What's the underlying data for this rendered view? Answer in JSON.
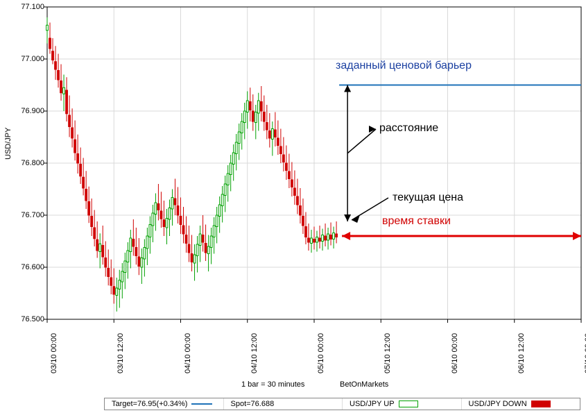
{
  "chart": {
    "type": "candlestick",
    "y_axis_label": "USD/JPY",
    "background_color": "#ffffff",
    "grid_color": "#d9d9d9",
    "axis_color": "#000000",
    "up_color": "#00a000",
    "down_color": "#d00000",
    "barrier_color": "#1e72b8",
    "arrow_color": "#000000",
    "bettime_color": "#e00000",
    "ylim": [
      76.5,
      77.1
    ],
    "yticks": [
      76.5,
      76.6,
      76.7,
      76.8,
      76.9,
      77.0,
      77.1
    ],
    "xticks": [
      "03/10 00:00",
      "03/10 12:00",
      "04/10 00:00",
      "04/10 12:00",
      "05/10 00:00",
      "05/10 12:00",
      "06/10 00:00",
      "06/10 12:00",
      "07/10 00:00"
    ],
    "x_bar_range": [
      0,
      192
    ],
    "x_visible_candles": [
      0,
      105
    ],
    "candles": [
      {
        "o": 77.055,
        "h": 77.08,
        "l": 77.03,
        "c": 77.065,
        "d": "u"
      },
      {
        "o": 77.04,
        "h": 77.07,
        "l": 77.01,
        "c": 77.02,
        "d": "d"
      },
      {
        "o": 77.015,
        "h": 77.04,
        "l": 76.99,
        "c": 76.998,
        "d": "d"
      },
      {
        "o": 76.995,
        "h": 77.025,
        "l": 76.96,
        "c": 76.98,
        "d": "d"
      },
      {
        "o": 76.978,
        "h": 77.01,
        "l": 76.945,
        "c": 76.96,
        "d": "d"
      },
      {
        "o": 76.958,
        "h": 76.99,
        "l": 76.92,
        "c": 76.935,
        "d": "d"
      },
      {
        "o": 76.933,
        "h": 76.97,
        "l": 76.9,
        "c": 76.945,
        "d": "u"
      },
      {
        "o": 76.94,
        "h": 76.965,
        "l": 76.88,
        "c": 76.895,
        "d": "d"
      },
      {
        "o": 76.892,
        "h": 76.93,
        "l": 76.85,
        "c": 76.87,
        "d": "d"
      },
      {
        "o": 76.868,
        "h": 76.905,
        "l": 76.83,
        "c": 76.848,
        "d": "d"
      },
      {
        "o": 76.845,
        "h": 76.882,
        "l": 76.805,
        "c": 76.82,
        "d": "d"
      },
      {
        "o": 76.818,
        "h": 76.855,
        "l": 76.78,
        "c": 76.8,
        "d": "d"
      },
      {
        "o": 76.798,
        "h": 76.83,
        "l": 76.76,
        "c": 76.775,
        "d": "d"
      },
      {
        "o": 76.773,
        "h": 76.81,
        "l": 76.738,
        "c": 76.752,
        "d": "d"
      },
      {
        "o": 76.75,
        "h": 76.785,
        "l": 76.712,
        "c": 76.728,
        "d": "d"
      },
      {
        "o": 76.726,
        "h": 76.755,
        "l": 76.685,
        "c": 76.7,
        "d": "d"
      },
      {
        "o": 76.698,
        "h": 76.732,
        "l": 76.66,
        "c": 76.678,
        "d": "d"
      },
      {
        "o": 76.676,
        "h": 76.71,
        "l": 76.64,
        "c": 76.655,
        "d": "d"
      },
      {
        "o": 76.653,
        "h": 76.688,
        "l": 76.618,
        "c": 76.632,
        "d": "d"
      },
      {
        "o": 76.63,
        "h": 76.665,
        "l": 76.598,
        "c": 76.645,
        "d": "u"
      },
      {
        "o": 76.642,
        "h": 76.68,
        "l": 76.605,
        "c": 76.62,
        "d": "d"
      },
      {
        "o": 76.618,
        "h": 76.65,
        "l": 76.582,
        "c": 76.6,
        "d": "d"
      },
      {
        "o": 76.598,
        "h": 76.634,
        "l": 76.565,
        "c": 76.582,
        "d": "d"
      },
      {
        "o": 76.58,
        "h": 76.615,
        "l": 76.548,
        "c": 76.565,
        "d": "d"
      },
      {
        "o": 76.563,
        "h": 76.598,
        "l": 76.53,
        "c": 76.548,
        "d": "d"
      },
      {
        "o": 76.546,
        "h": 76.58,
        "l": 76.515,
        "c": 76.56,
        "d": "u"
      },
      {
        "o": 76.558,
        "h": 76.595,
        "l": 76.522,
        "c": 76.575,
        "d": "u"
      },
      {
        "o": 76.572,
        "h": 76.608,
        "l": 76.54,
        "c": 76.592,
        "d": "u"
      },
      {
        "o": 76.59,
        "h": 76.628,
        "l": 76.558,
        "c": 76.612,
        "d": "u"
      },
      {
        "o": 76.61,
        "h": 76.648,
        "l": 76.578,
        "c": 76.632,
        "d": "u"
      },
      {
        "o": 76.63,
        "h": 76.672,
        "l": 76.598,
        "c": 76.656,
        "d": "u"
      },
      {
        "o": 76.654,
        "h": 76.692,
        "l": 76.622,
        "c": 76.64,
        "d": "d"
      },
      {
        "o": 76.638,
        "h": 76.676,
        "l": 76.605,
        "c": 76.622,
        "d": "d"
      },
      {
        "o": 76.62,
        "h": 76.656,
        "l": 76.585,
        "c": 76.602,
        "d": "d"
      },
      {
        "o": 76.6,
        "h": 76.636,
        "l": 76.568,
        "c": 76.618,
        "d": "u"
      },
      {
        "o": 76.616,
        "h": 76.654,
        "l": 76.582,
        "c": 76.638,
        "d": "u"
      },
      {
        "o": 76.636,
        "h": 76.676,
        "l": 76.604,
        "c": 76.66,
        "d": "u"
      },
      {
        "o": 76.658,
        "h": 76.698,
        "l": 76.626,
        "c": 76.682,
        "d": "u"
      },
      {
        "o": 76.68,
        "h": 76.72,
        "l": 76.648,
        "c": 76.704,
        "d": "u"
      },
      {
        "o": 76.702,
        "h": 76.742,
        "l": 76.67,
        "c": 76.724,
        "d": "u"
      },
      {
        "o": 76.722,
        "h": 76.76,
        "l": 76.69,
        "c": 76.71,
        "d": "d"
      },
      {
        "o": 76.708,
        "h": 76.745,
        "l": 76.676,
        "c": 76.693,
        "d": "d"
      },
      {
        "o": 76.691,
        "h": 76.728,
        "l": 76.66,
        "c": 76.678,
        "d": "d"
      },
      {
        "o": 76.676,
        "h": 76.712,
        "l": 76.644,
        "c": 76.694,
        "d": "u"
      },
      {
        "o": 76.692,
        "h": 76.73,
        "l": 76.66,
        "c": 76.714,
        "d": "u"
      },
      {
        "o": 76.712,
        "h": 76.75,
        "l": 76.68,
        "c": 76.734,
        "d": "u"
      },
      {
        "o": 76.732,
        "h": 76.77,
        "l": 76.7,
        "c": 76.72,
        "d": "d"
      },
      {
        "o": 76.718,
        "h": 76.754,
        "l": 76.684,
        "c": 76.7,
        "d": "d"
      },
      {
        "o": 76.698,
        "h": 76.734,
        "l": 76.664,
        "c": 76.682,
        "d": "d"
      },
      {
        "o": 76.68,
        "h": 76.716,
        "l": 76.646,
        "c": 76.664,
        "d": "d"
      },
      {
        "o": 76.662,
        "h": 76.698,
        "l": 76.628,
        "c": 76.646,
        "d": "d"
      },
      {
        "o": 76.644,
        "h": 76.68,
        "l": 76.61,
        "c": 76.628,
        "d": "d"
      },
      {
        "o": 76.626,
        "h": 76.662,
        "l": 76.592,
        "c": 76.61,
        "d": "d"
      },
      {
        "o": 76.608,
        "h": 76.644,
        "l": 76.574,
        "c": 76.624,
        "d": "u"
      },
      {
        "o": 76.622,
        "h": 76.66,
        "l": 76.59,
        "c": 76.644,
        "d": "u"
      },
      {
        "o": 76.642,
        "h": 76.68,
        "l": 76.61,
        "c": 76.664,
        "d": "u"
      },
      {
        "o": 76.662,
        "h": 76.7,
        "l": 76.63,
        "c": 76.648,
        "d": "d"
      },
      {
        "o": 76.646,
        "h": 76.682,
        "l": 76.612,
        "c": 76.628,
        "d": "d"
      },
      {
        "o": 76.626,
        "h": 76.662,
        "l": 76.592,
        "c": 76.64,
        "d": "u"
      },
      {
        "o": 76.638,
        "h": 76.676,
        "l": 76.606,
        "c": 76.66,
        "d": "u"
      },
      {
        "o": 76.658,
        "h": 76.696,
        "l": 76.626,
        "c": 76.68,
        "d": "u"
      },
      {
        "o": 76.678,
        "h": 76.716,
        "l": 76.646,
        "c": 76.7,
        "d": "u"
      },
      {
        "o": 76.698,
        "h": 76.736,
        "l": 76.666,
        "c": 76.72,
        "d": "u"
      },
      {
        "o": 76.718,
        "h": 76.756,
        "l": 76.686,
        "c": 76.74,
        "d": "u"
      },
      {
        "o": 76.738,
        "h": 76.776,
        "l": 76.706,
        "c": 76.76,
        "d": "u"
      },
      {
        "o": 76.758,
        "h": 76.796,
        "l": 76.726,
        "c": 76.78,
        "d": "u"
      },
      {
        "o": 76.778,
        "h": 76.816,
        "l": 76.746,
        "c": 76.8,
        "d": "u"
      },
      {
        "o": 76.798,
        "h": 76.836,
        "l": 76.766,
        "c": 76.82,
        "d": "u"
      },
      {
        "o": 76.818,
        "h": 76.856,
        "l": 76.786,
        "c": 76.84,
        "d": "u"
      },
      {
        "o": 76.838,
        "h": 76.876,
        "l": 76.806,
        "c": 76.86,
        "d": "u"
      },
      {
        "o": 76.858,
        "h": 76.896,
        "l": 76.826,
        "c": 76.88,
        "d": "u"
      },
      {
        "o": 76.878,
        "h": 76.916,
        "l": 76.846,
        "c": 76.9,
        "d": "u"
      },
      {
        "o": 76.898,
        "h": 76.938,
        "l": 76.866,
        "c": 76.92,
        "d": "u"
      },
      {
        "o": 76.918,
        "h": 76.945,
        "l": 76.88,
        "c": 76.902,
        "d": "d"
      },
      {
        "o": 76.9,
        "h": 76.932,
        "l": 76.862,
        "c": 76.88,
        "d": "d"
      },
      {
        "o": 76.878,
        "h": 76.912,
        "l": 76.846,
        "c": 76.898,
        "d": "u"
      },
      {
        "o": 76.896,
        "h": 76.935,
        "l": 76.862,
        "c": 76.92,
        "d": "u"
      },
      {
        "o": 76.918,
        "h": 76.948,
        "l": 76.88,
        "c": 76.9,
        "d": "d"
      },
      {
        "o": 76.898,
        "h": 76.93,
        "l": 76.862,
        "c": 76.88,
        "d": "d"
      },
      {
        "o": 76.878,
        "h": 76.912,
        "l": 76.846,
        "c": 76.864,
        "d": "d"
      },
      {
        "o": 76.862,
        "h": 76.896,
        "l": 76.83,
        "c": 76.848,
        "d": "d"
      },
      {
        "o": 76.846,
        "h": 76.88,
        "l": 76.814,
        "c": 76.866,
        "d": "u"
      },
      {
        "o": 76.864,
        "h": 76.898,
        "l": 76.832,
        "c": 76.85,
        "d": "d"
      },
      {
        "o": 76.848,
        "h": 76.882,
        "l": 76.816,
        "c": 76.834,
        "d": "d"
      },
      {
        "o": 76.832,
        "h": 76.866,
        "l": 76.8,
        "c": 76.818,
        "d": "d"
      },
      {
        "o": 76.816,
        "h": 76.85,
        "l": 76.784,
        "c": 76.802,
        "d": "d"
      },
      {
        "o": 76.8,
        "h": 76.834,
        "l": 76.768,
        "c": 76.786,
        "d": "d"
      },
      {
        "o": 76.784,
        "h": 76.818,
        "l": 76.752,
        "c": 76.77,
        "d": "d"
      },
      {
        "o": 76.768,
        "h": 76.802,
        "l": 76.736,
        "c": 76.754,
        "d": "d"
      },
      {
        "o": 76.752,
        "h": 76.786,
        "l": 76.72,
        "c": 76.738,
        "d": "d"
      },
      {
        "o": 76.736,
        "h": 76.77,
        "l": 76.702,
        "c": 76.72,
        "d": "d"
      },
      {
        "o": 76.718,
        "h": 76.752,
        "l": 76.684,
        "c": 76.7,
        "d": "d"
      },
      {
        "o": 76.698,
        "h": 76.732,
        "l": 76.664,
        "c": 76.68,
        "d": "d"
      },
      {
        "o": 76.678,
        "h": 76.706,
        "l": 76.644,
        "c": 76.658,
        "d": "d"
      },
      {
        "o": 76.656,
        "h": 76.684,
        "l": 76.632,
        "c": 76.648,
        "d": "d"
      },
      {
        "o": 76.646,
        "h": 76.672,
        "l": 76.628,
        "c": 76.656,
        "d": "u"
      },
      {
        "o": 76.654,
        "h": 76.678,
        "l": 76.634,
        "c": 76.648,
        "d": "d"
      },
      {
        "o": 76.648,
        "h": 76.67,
        "l": 76.63,
        "c": 76.658,
        "d": "u"
      },
      {
        "o": 76.656,
        "h": 76.68,
        "l": 76.636,
        "c": 76.65,
        "d": "d"
      },
      {
        "o": 76.65,
        "h": 76.674,
        "l": 76.632,
        "c": 76.662,
        "d": "u"
      },
      {
        "o": 76.66,
        "h": 76.684,
        "l": 76.64,
        "c": 76.652,
        "d": "d"
      },
      {
        "o": 76.652,
        "h": 76.676,
        "l": 76.634,
        "c": 76.664,
        "d": "u"
      },
      {
        "o": 76.662,
        "h": 76.686,
        "l": 76.642,
        "c": 76.654,
        "d": "d"
      },
      {
        "o": 76.654,
        "h": 76.678,
        "l": 76.636,
        "c": 76.666,
        "d": "u"
      },
      {
        "o": 76.664,
        "h": 76.688,
        "l": 76.646,
        "c": 76.658,
        "d": "d"
      }
    ],
    "barrier_price": 76.95,
    "current_price": 76.688,
    "subtitle1": "1 bar = 30 minutes",
    "subtitle2": "BetOnMarkets"
  },
  "annotations": {
    "barrier": "заданный ценовой барьер",
    "distance": "расстояние",
    "current": "текущая цена",
    "bettime": "время ставки"
  },
  "legend": {
    "target": "Target=76.95(+0.34%)",
    "spot": "Spot=76.688",
    "up": "USD/JPY UP",
    "down": "USD/JPY DOWN"
  }
}
